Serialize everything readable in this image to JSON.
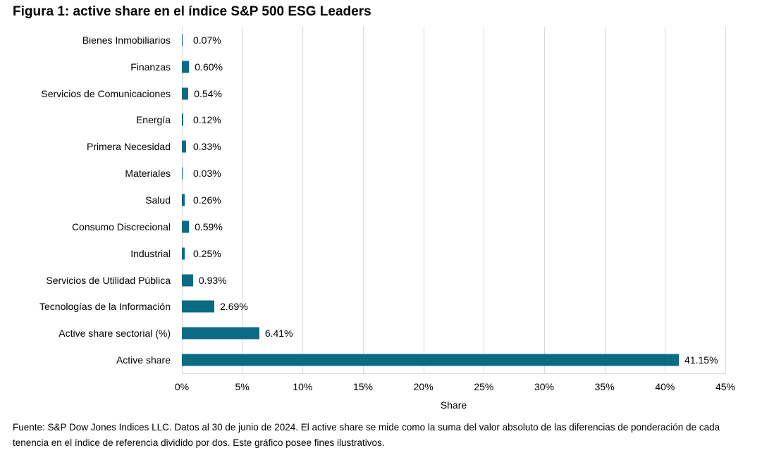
{
  "title": "Figura 1: active share en el índice S&P 500 ESG Leaders",
  "chart_data": {
    "type": "bar",
    "orientation": "horizontal",
    "categories": [
      "Bienes Inmobiliarios",
      "Finanzas",
      "Servicios de Comunicaciones",
      "Energía",
      "Primera Necesidad",
      "Materiales",
      "Salud",
      "Consumo Discrecional",
      "Industrial",
      "Servicios de Utilidad Pública",
      "Tecnologías de la Información",
      "Active share sectorial (%)",
      "Active share"
    ],
    "values": [
      0.07,
      0.6,
      0.54,
      0.12,
      0.33,
      0.03,
      0.26,
      0.59,
      0.25,
      0.93,
      2.69,
      6.41,
      41.15
    ],
    "value_labels": [
      "0.07%",
      "0.60%",
      "0.54%",
      "0.12%",
      "0.33%",
      "0.03%",
      "0.26%",
      "0.59%",
      "0.25%",
      "0.93%",
      "2.69%",
      "6.41%",
      "41.15%"
    ],
    "xlabel": "Share",
    "xlim": [
      0,
      45
    ],
    "xticks": [
      "0%",
      "5%",
      "10%",
      "15%",
      "20%",
      "25%",
      "30%",
      "35%",
      "40%",
      "45%"
    ],
    "grid": true,
    "legend": false,
    "bar_color": "#0b6b84",
    "gridline_color": "#d9d9d9"
  },
  "footer": {
    "source_note": "Fuente: S&P Dow Jones Indices LLC. Datos al 30 de junio de 2024. El active share se mide como la suma del valor absoluto de las diferencias de ponderación de cada tenencia en el índice de referencia dividido por dos. Este gráfico posee fines ilustrativos."
  }
}
